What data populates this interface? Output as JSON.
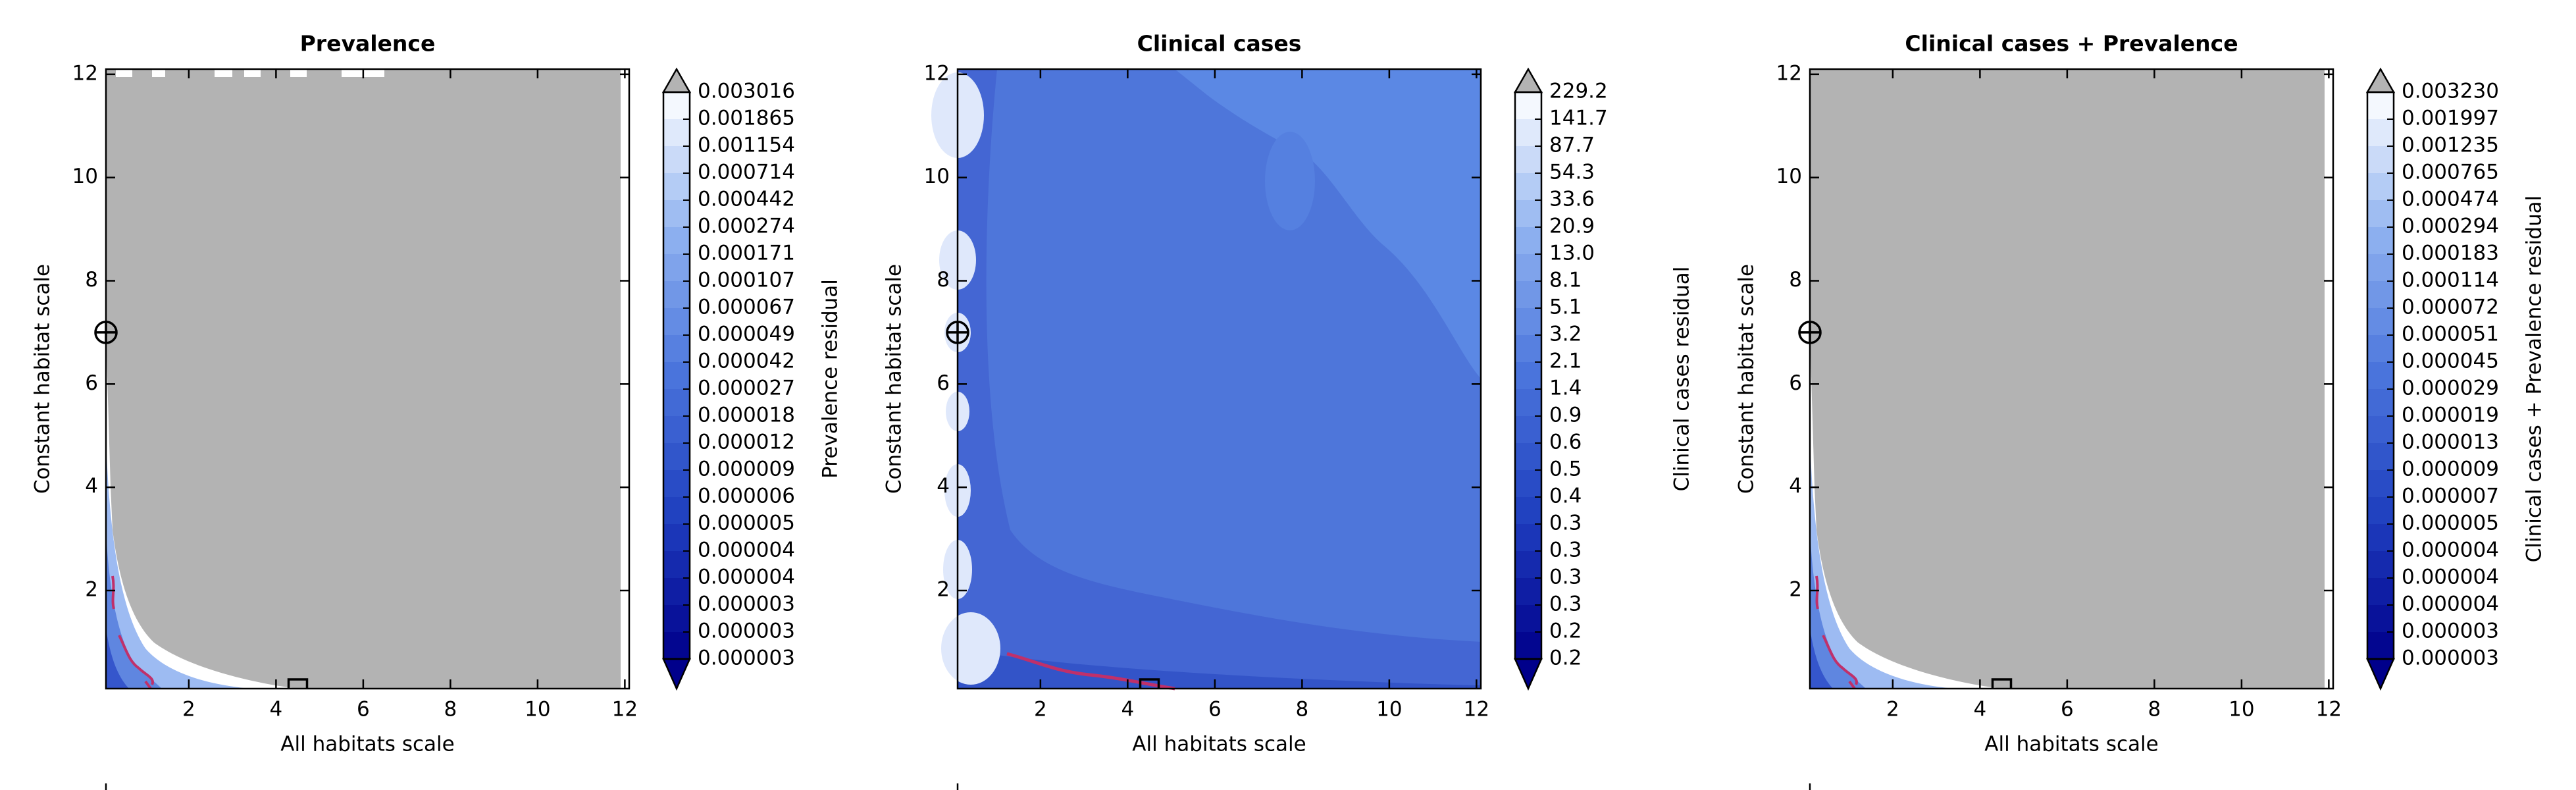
{
  "chart_data": [
    {
      "type": "contour",
      "title": "Prevalence",
      "x_label": "All habitats scale",
      "y_label": "Constant habitat scale",
      "xlim": [
        0.1,
        12.1
      ],
      "ylim": [
        0.1,
        12.1
      ],
      "xticks": [
        2,
        4,
        6,
        8,
        10,
        12
      ],
      "yticks": [
        2,
        4,
        6,
        8,
        10,
        12
      ],
      "colorbar_label": "Prevalence residual",
      "colorbar_levels": [
        0.003016,
        0.001865,
        0.001154,
        0.000714,
        0.000442,
        0.000274,
        0.000171,
        0.000107,
        6.7e-05,
        4.9e-05,
        4.2e-05,
        2.7e-05,
        1.8e-05,
        1.2e-05,
        9e-06,
        6e-06,
        5e-06,
        4e-06,
        4e-06,
        3e-06,
        3e-06,
        3e-06
      ],
      "colormap": [
        "#00008b",
        "#1f3fbf",
        "#4a74dc",
        "#8fb2f0",
        "#ffffff"
      ],
      "over_color": "#b3b3b3",
      "under_color": "#00008b",
      "markers": [
        {
          "shape": "circle-cross",
          "x": 0.1,
          "y": 7
        },
        {
          "shape": "square",
          "x": 4.5,
          "y": 0.1
        }
      ]
    },
    {
      "type": "contour",
      "title": "Clinical cases",
      "x_label": "All habitats scale",
      "y_label": "Constant habitat scale",
      "xlim": [
        0.1,
        12.1
      ],
      "ylim": [
        0.1,
        12.1
      ],
      "xticks": [
        2,
        4,
        6,
        8,
        10,
        12
      ],
      "yticks": [
        2,
        4,
        6,
        8,
        10,
        12
      ],
      "colorbar_label": "Clinical cases residual",
      "colorbar_levels": [
        229.2,
        141.7,
        87.7,
        54.3,
        33.6,
        20.9,
        {
          "value": 13,
          "label": "13.0"
        },
        8.1,
        5.1,
        3.2,
        2.1,
        1.4,
        0.9,
        0.6,
        0.5,
        0.4,
        0.3,
        0.3,
        0.3,
        0.3,
        0.2,
        0.2
      ],
      "colormap": [
        "#00008b",
        "#1f3fbf",
        "#4a74dc",
        "#8fb2f0",
        "#ffffff"
      ],
      "over_color": "#b3b3b3",
      "under_color": "#00008b",
      "markers": [
        {
          "shape": "circle-cross",
          "x": 0.1,
          "y": 7
        },
        {
          "shape": "square",
          "x": 4.5,
          "y": 0.1
        }
      ]
    },
    {
      "type": "contour",
      "title": "Clinical cases + Prevalence",
      "x_label": "All habitats scale",
      "y_label": "Constant habitat scale",
      "xlim": [
        0.1,
        12.1
      ],
      "ylim": [
        0.1,
        12.1
      ],
      "xticks": [
        2,
        4,
        6,
        8,
        10,
        12
      ],
      "yticks": [
        2,
        4,
        6,
        8,
        10,
        12
      ],
      "colorbar_label": "Clinical cases + Prevalence residual",
      "colorbar_levels": [
        {
          "value": 0.00323,
          "label": "0.003230"
        },
        0.001997,
        0.001235,
        0.000765,
        0.000474,
        0.000294,
        0.000183,
        0.000114,
        7.2e-05,
        5.1e-05,
        4.5e-05,
        2.9e-05,
        1.9e-05,
        1.3e-05,
        9e-06,
        7e-06,
        5e-06,
        4e-06,
        4e-06,
        4e-06,
        3e-06,
        3e-06
      ],
      "colormap": [
        "#00008b",
        "#1f3fbf",
        "#4a74dc",
        "#8fb2f0",
        "#ffffff"
      ],
      "over_color": "#b3b3b3",
      "under_color": "#00008b",
      "markers": [
        {
          "shape": "circle-cross",
          "x": 0.1,
          "y": 7
        },
        {
          "shape": "square",
          "x": 4.5,
          "y": 0.1
        }
      ]
    }
  ]
}
